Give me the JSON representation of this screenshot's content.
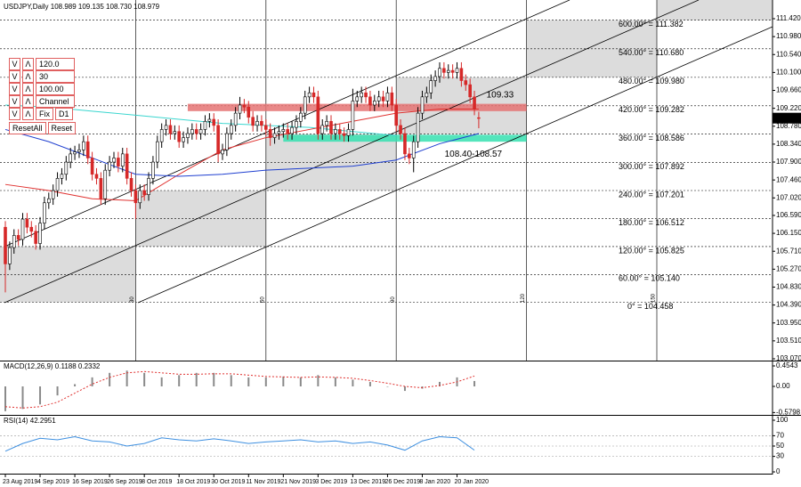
{
  "chart_data": [
    {
      "type": "candlestick",
      "title": "USDJPY,Daily 108.989 109.135 108.730 108.979",
      "up_color": "#ffffff",
      "down_color": "#d62828",
      "ohlc": [
        [
          106.3,
          106.45,
          104.7,
          105.4
        ],
        [
          105.4,
          105.95,
          105.25,
          105.8
        ],
        [
          105.8,
          106.25,
          105.65,
          106.1
        ],
        [
          106.1,
          106.25,
          105.85,
          106.0
        ],
        [
          106.0,
          106.65,
          105.85,
          106.5
        ],
        [
          106.5,
          106.65,
          106.15,
          106.3
        ],
        [
          106.3,
          106.45,
          106.05,
          106.2
        ],
        [
          106.2,
          106.35,
          105.75,
          105.9
        ],
        [
          105.9,
          106.55,
          105.75,
          106.4
        ],
        [
          106.4,
          107.05,
          106.25,
          106.9
        ],
        [
          106.9,
          107.15,
          106.75,
          107.0
        ],
        [
          107.0,
          107.35,
          106.85,
          107.2
        ],
        [
          107.2,
          107.65,
          107.05,
          107.5
        ],
        [
          107.5,
          107.75,
          107.35,
          107.6
        ],
        [
          107.6,
          108.05,
          107.45,
          107.9
        ],
        [
          107.9,
          108.25,
          107.75,
          108.1
        ],
        [
          108.1,
          108.3,
          107.95,
          108.15
        ],
        [
          108.15,
          108.35,
          108.0,
          108.2
        ],
        [
          108.2,
          108.55,
          108.05,
          108.4
        ],
        [
          108.4,
          108.55,
          107.85,
          108.0
        ],
        [
          108.0,
          108.15,
          107.45,
          107.6
        ],
        [
          107.6,
          107.75,
          107.35,
          107.5
        ],
        [
          107.5,
          107.65,
          106.85,
          107.0
        ],
        [
          107.0,
          107.85,
          106.85,
          107.7
        ],
        [
          107.7,
          108.05,
          107.55,
          107.9
        ],
        [
          107.9,
          108.15,
          107.75,
          108.0
        ],
        [
          108.0,
          108.15,
          107.65,
          107.8
        ],
        [
          107.8,
          108.25,
          107.65,
          108.1
        ],
        [
          108.1,
          108.25,
          107.35,
          107.5
        ],
        [
          107.5,
          107.65,
          107.05,
          107.2
        ],
        [
          107.2,
          107.35,
          106.5,
          106.9
        ],
        [
          106.9,
          107.35,
          106.75,
          107.2
        ],
        [
          107.2,
          107.35,
          106.95,
          107.1
        ],
        [
          107.1,
          107.65,
          106.95,
          107.5
        ],
        [
          107.5,
          108.05,
          107.35,
          107.9
        ],
        [
          107.9,
          108.55,
          107.75,
          108.4
        ],
        [
          108.4,
          108.85,
          108.25,
          108.7
        ],
        [
          108.7,
          108.95,
          108.55,
          108.8
        ],
        [
          108.8,
          108.95,
          108.45,
          108.6
        ],
        [
          108.6,
          108.8,
          108.45,
          108.65
        ],
        [
          108.65,
          108.8,
          108.25,
          108.4
        ],
        [
          108.4,
          108.65,
          108.25,
          108.5
        ],
        [
          108.5,
          108.75,
          108.35,
          108.6
        ],
        [
          108.6,
          108.85,
          108.45,
          108.7
        ],
        [
          108.7,
          108.85,
          108.45,
          108.6
        ],
        [
          108.6,
          108.85,
          108.45,
          108.7
        ],
        [
          108.7,
          109.05,
          108.55,
          108.9
        ],
        [
          108.9,
          109.1,
          108.75,
          108.95
        ],
        [
          108.95,
          109.1,
          108.65,
          108.8
        ],
        [
          108.8,
          108.95,
          107.9,
          108.1
        ],
        [
          108.1,
          108.35,
          107.95,
          108.2
        ],
        [
          108.2,
          108.75,
          108.05,
          108.6
        ],
        [
          108.6,
          108.95,
          108.45,
          108.8
        ],
        [
          108.8,
          109.25,
          108.65,
          109.1
        ],
        [
          109.1,
          109.5,
          108.95,
          109.3
        ],
        [
          109.3,
          109.45,
          109.1,
          109.25
        ],
        [
          109.25,
          109.4,
          108.85,
          109.0
        ],
        [
          109.0,
          109.15,
          108.65,
          108.8
        ],
        [
          108.8,
          109.05,
          108.65,
          108.9
        ],
        [
          108.9,
          109.05,
          108.65,
          108.8
        ],
        [
          108.8,
          108.95,
          108.55,
          108.7
        ],
        [
          108.7,
          108.85,
          108.3,
          108.5
        ],
        [
          108.5,
          108.75,
          108.35,
          108.6
        ],
        [
          108.6,
          108.8,
          108.45,
          108.65
        ],
        [
          108.65,
          108.85,
          108.5,
          108.7
        ],
        [
          108.7,
          108.85,
          108.45,
          108.6
        ],
        [
          108.6,
          108.9,
          108.45,
          108.75
        ],
        [
          108.75,
          109.05,
          108.6,
          108.9
        ],
        [
          108.9,
          109.25,
          108.75,
          109.1
        ],
        [
          109.1,
          109.65,
          108.95,
          109.5
        ],
        [
          109.5,
          109.75,
          109.35,
          109.6
        ],
        [
          109.6,
          109.75,
          109.35,
          109.5
        ],
        [
          109.5,
          109.65,
          108.45,
          108.6
        ],
        [
          108.6,
          108.95,
          108.45,
          108.8
        ],
        [
          108.8,
          109.05,
          108.65,
          108.9
        ],
        [
          108.9,
          109.05,
          108.45,
          108.6
        ],
        [
          108.6,
          108.85,
          108.45,
          108.7
        ],
        [
          108.7,
          108.85,
          108.45,
          108.6
        ],
        [
          108.6,
          108.75,
          108.4,
          108.55
        ],
        [
          108.55,
          108.85,
          108.4,
          108.7
        ],
        [
          108.7,
          109.7,
          108.55,
          109.4
        ],
        [
          109.4,
          109.65,
          109.25,
          109.5
        ],
        [
          109.5,
          109.75,
          109.35,
          109.6
        ],
        [
          109.6,
          109.75,
          109.35,
          109.5
        ],
        [
          109.5,
          109.65,
          109.15,
          109.3
        ],
        [
          109.3,
          109.55,
          109.15,
          109.4
        ],
        [
          109.4,
          109.65,
          109.25,
          109.5
        ],
        [
          109.5,
          109.65,
          109.25,
          109.4
        ],
        [
          109.4,
          109.75,
          109.25,
          109.6
        ],
        [
          109.6,
          109.75,
          109.15,
          109.3
        ],
        [
          109.3,
          109.45,
          108.65,
          108.8
        ],
        [
          108.8,
          108.95,
          108.45,
          108.6
        ],
        [
          108.6,
          108.75,
          107.95,
          108.1
        ],
        [
          108.1,
          108.25,
          107.85,
          108.0
        ],
        [
          108.0,
          108.55,
          107.65,
          108.4
        ],
        [
          108.4,
          109.25,
          108.25,
          109.1
        ],
        [
          109.1,
          109.65,
          108.95,
          109.5
        ],
        [
          109.5,
          109.75,
          109.35,
          109.6
        ],
        [
          109.6,
          110.05,
          109.45,
          109.9
        ],
        [
          109.9,
          110.15,
          109.75,
          110.0
        ],
        [
          110.0,
          110.35,
          109.85,
          110.2
        ],
        [
          110.2,
          110.35,
          109.95,
          110.1
        ],
        [
          110.1,
          110.3,
          109.95,
          110.15
        ],
        [
          110.15,
          110.3,
          109.95,
          110.1
        ],
        [
          110.1,
          110.35,
          109.95,
          110.2
        ],
        [
          110.2,
          110.35,
          109.75,
          109.9
        ],
        [
          109.9,
          110.05,
          109.65,
          109.8
        ],
        [
          109.8,
          109.95,
          109.35,
          109.5
        ],
        [
          109.5,
          109.65,
          109.05,
          109.2
        ],
        [
          108.989,
          109.135,
          108.73,
          108.979
        ]
      ],
      "last_price": 108.979,
      "xticks": [
        {
          "value": 0,
          "label": "23 Aug 2019"
        },
        {
          "value": 8,
          "label": "4 Sep 2019"
        },
        {
          "value": 16,
          "label": "16 Sep 2019"
        },
        {
          "value": 24,
          "label": "26 Sep 2019"
        },
        {
          "value": 32,
          "label": "8 Oct 2019"
        },
        {
          "value": 40,
          "label": "18 Oct 2019"
        },
        {
          "value": 48,
          "label": "30 Oct 2019"
        },
        {
          "value": 56,
          "label": "11 Nov 2019"
        },
        {
          "value": 64,
          "label": "21 Nov 2019"
        },
        {
          "value": 72,
          "label": "3 Dec 2019"
        },
        {
          "value": 80,
          "label": "13 Dec 2019"
        },
        {
          "value": 88,
          "label": "26 Dec 2019"
        },
        {
          "value": 96,
          "label": "8 Jan 2020"
        },
        {
          "value": 104,
          "label": "20 Jan 2020"
        }
      ],
      "ylim": [
        103.026,
        111.879
      ],
      "yticks": [
        {
          "value": 111.42,
          "label": "111.420"
        },
        {
          "value": 110.98,
          "label": "110.980"
        },
        {
          "value": 110.54,
          "label": "110.540"
        },
        {
          "value": 110.1,
          "label": "110.100"
        },
        {
          "value": 109.66,
          "label": "109.660"
        },
        {
          "value": 109.22,
          "label": "109.220"
        },
        {
          "value": 108.78,
          "label": "108.780"
        },
        {
          "value": 108.34,
          "label": "108.340"
        },
        {
          "value": 107.9,
          "label": "107.900"
        },
        {
          "value": 107.46,
          "label": "107.460"
        },
        {
          "value": 107.02,
          "label": "107.020"
        },
        {
          "value": 106.59,
          "label": "106.590"
        },
        {
          "value": 106.15,
          "label": "106.150"
        },
        {
          "value": 105.71,
          "label": "105.710"
        },
        {
          "value": 105.27,
          "label": "105.270"
        },
        {
          "value": 104.83,
          "label": "104.830"
        },
        {
          "value": 104.39,
          "label": "104.390"
        },
        {
          "value": 103.95,
          "label": "103.950"
        },
        {
          "value": 103.51,
          "label": "103.510"
        },
        {
          "value": 103.07,
          "label": "103.070"
        }
      ],
      "moving_averages": [
        {
          "color": "#3ad6cf",
          "x": [
            0,
            10,
            20,
            30,
            40,
            50,
            60,
            70,
            80,
            90
          ],
          "values": [
            109.3,
            109.25,
            109.15,
            109.05,
            108.95,
            108.85,
            108.8,
            108.75,
            108.65,
            108.55
          ]
        },
        {
          "color": "#e0312f",
          "x": [
            0,
            10,
            20,
            30,
            40,
            50,
            60,
            70,
            80,
            90,
            100,
            109
          ],
          "values": [
            107.35,
            107.2,
            107.0,
            106.95,
            107.6,
            108.2,
            108.5,
            108.7,
            108.9,
            109.1,
            109.2,
            109.2
          ]
        },
        {
          "color": "#1f3fd0",
          "x": [
            0,
            10,
            20,
            30,
            40,
            50,
            60,
            70,
            80,
            90,
            100,
            109
          ],
          "values": [
            108.7,
            108.4,
            108.0,
            107.6,
            107.55,
            107.6,
            107.7,
            107.75,
            107.8,
            107.95,
            108.35,
            108.6
          ]
        }
      ],
      "gann": {
        "levels": [
          {
            "value": 104.458,
            "label": "0° = 104.458"
          },
          {
            "value": 105.14,
            "label": "60.00° = 105.140"
          },
          {
            "value": 105.825,
            "label": "120.00° = 105.825"
          },
          {
            "value": 106.512,
            "label": "180.00° = 106.512"
          },
          {
            "value": 107.201,
            "label": "240.00° = 107.201"
          },
          {
            "value": 107.892,
            "label": "300.00° = 107.892"
          },
          {
            "value": 108.586,
            "label": "360.00° = 108.586"
          },
          {
            "value": 109.282,
            "label": "420.00° = 109.282"
          },
          {
            "value": 109.98,
            "label": "480.00° = 109.980"
          },
          {
            "value": 110.68,
            "label": "540.00° = 110.680"
          },
          {
            "value": 111.382,
            "label": "600.00° = 111.382"
          }
        ],
        "time_labels": [
          30,
          60,
          90,
          120,
          150
        ]
      },
      "zones": [
        {
          "label": "109.33",
          "color": "#e57373",
          "low": 109.15,
          "high": 109.33,
          "start": 42,
          "end": 120
        },
        {
          "label": "108.40-108.57",
          "color": "#36e0b0",
          "low": 108.4,
          "high": 108.57,
          "start": 64,
          "end": 120
        }
      ]
    },
    {
      "type": "bar",
      "title": "MACD(12,26,9) 0.1188 0.2332",
      "color": "#8a8a8a",
      "signal_color": "#e0312f",
      "x": [
        0,
        4,
        8,
        12,
        16,
        20,
        24,
        28,
        32,
        36,
        40,
        44,
        48,
        52,
        56,
        60,
        64,
        68,
        72,
        76,
        80,
        84,
        88,
        92,
        96,
        100,
        104,
        108
      ],
      "values": [
        -0.55,
        -0.5,
        -0.4,
        -0.2,
        0.05,
        0.2,
        0.3,
        0.35,
        0.3,
        0.2,
        0.25,
        0.3,
        0.3,
        0.25,
        0.2,
        0.2,
        0.22,
        0.2,
        0.25,
        0.2,
        0.15,
        0.1,
        0.0,
        -0.1,
        -0.05,
        0.1,
        0.2,
        0.12
      ],
      "signal": [
        -0.45,
        -0.48,
        -0.45,
        -0.35,
        -0.15,
        0.05,
        0.2,
        0.3,
        0.33,
        0.3,
        0.27,
        0.27,
        0.28,
        0.28,
        0.25,
        0.22,
        0.21,
        0.2,
        0.21,
        0.2,
        0.18,
        0.13,
        0.07,
        0.0,
        -0.03,
        0.02,
        0.1,
        0.23
      ],
      "ylim": [
        -0.632,
        0.553
      ],
      "yticks": [
        0.4543,
        {
          "value": 0,
          "label": "0.00"
        },
        -0.5798
      ]
    },
    {
      "type": "line",
      "title": "RSI(14) 42.2951",
      "color": "#3d8fe0",
      "x": [
        0,
        4,
        8,
        12,
        16,
        20,
        24,
        28,
        32,
        36,
        40,
        44,
        48,
        52,
        56,
        60,
        64,
        68,
        72,
        76,
        80,
        84,
        88,
        92,
        96,
        100,
        104,
        108
      ],
      "values": [
        40,
        55,
        65,
        62,
        68,
        60,
        58,
        50,
        55,
        66,
        62,
        60,
        64,
        60,
        55,
        58,
        60,
        62,
        58,
        60,
        55,
        58,
        52,
        42,
        60,
        68,
        66,
        42
      ],
      "ylim": [
        -3.4,
        108.6
      ],
      "yticks": [
        100,
        70,
        50,
        30,
        0
      ],
      "levels": [
        70,
        50,
        30
      ]
    }
  ],
  "controls": {
    "rows": [
      {
        "down": "V",
        "up": "Λ",
        "value": "120.0"
      },
      {
        "down": "V",
        "up": "Λ",
        "value": "30"
      },
      {
        "down": "V",
        "up": "Λ",
        "value": "100.00"
      },
      {
        "down": "V",
        "up": "Λ",
        "value": "Channel"
      },
      {
        "down": "V",
        "up": "Λ",
        "value": "Fix",
        "extra": "D1"
      }
    ],
    "buttons": [
      "ResetAll",
      "Reset"
    ]
  }
}
